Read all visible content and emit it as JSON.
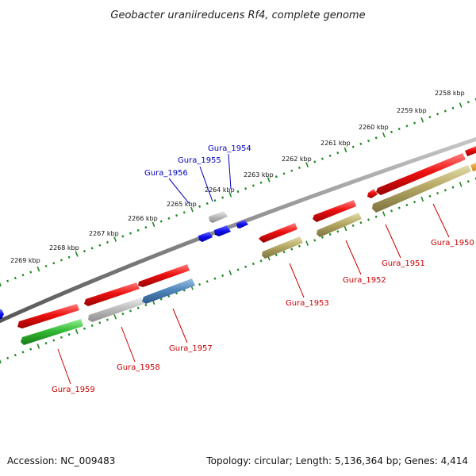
{
  "title": "Geobacter uraniireducens Rf4, complete genome",
  "footer": {
    "accession": "Accession: NC_009483",
    "info": "Topology: circular; Length: 5,136,364 bp; Genes: 4,414"
  },
  "colors": {
    "backbone": "#8a8a8a",
    "tick_track": "#1e8a1e",
    "label_red": "#cc0000",
    "label_blue": "#0000bb",
    "leader_line_red": "#cc0000",
    "leader_line_blue": "#0000bb"
  },
  "scale_labels": [
    "2269 kbp",
    "2268 kbp",
    "2267 kbp",
    "2266 kbp",
    "2265 kbp",
    "2264 kbp",
    "2263 kbp",
    "2262 kbp",
    "2261 kbp",
    "2260 kbp",
    "2259 kbp",
    "2258 kbp"
  ],
  "gene_labels_red": [
    "Gura_1959",
    "Gura_1958",
    "Gura_1957",
    "Gura_1953",
    "Gura_1952",
    "Gura_1951",
    "Gura_1950"
  ],
  "gene_labels_blue": [
    "Gura_1956",
    "Gura_1955",
    "Gura_1954"
  ],
  "feature_colors": {
    "cds": "#ee1111",
    "misc_green": "#33bb33",
    "grey": "#b8b8b8",
    "steel_blue": "#4f86bb",
    "olive": "#b5a964",
    "small_blue": "#1111ee",
    "orange": "#f0a020"
  }
}
